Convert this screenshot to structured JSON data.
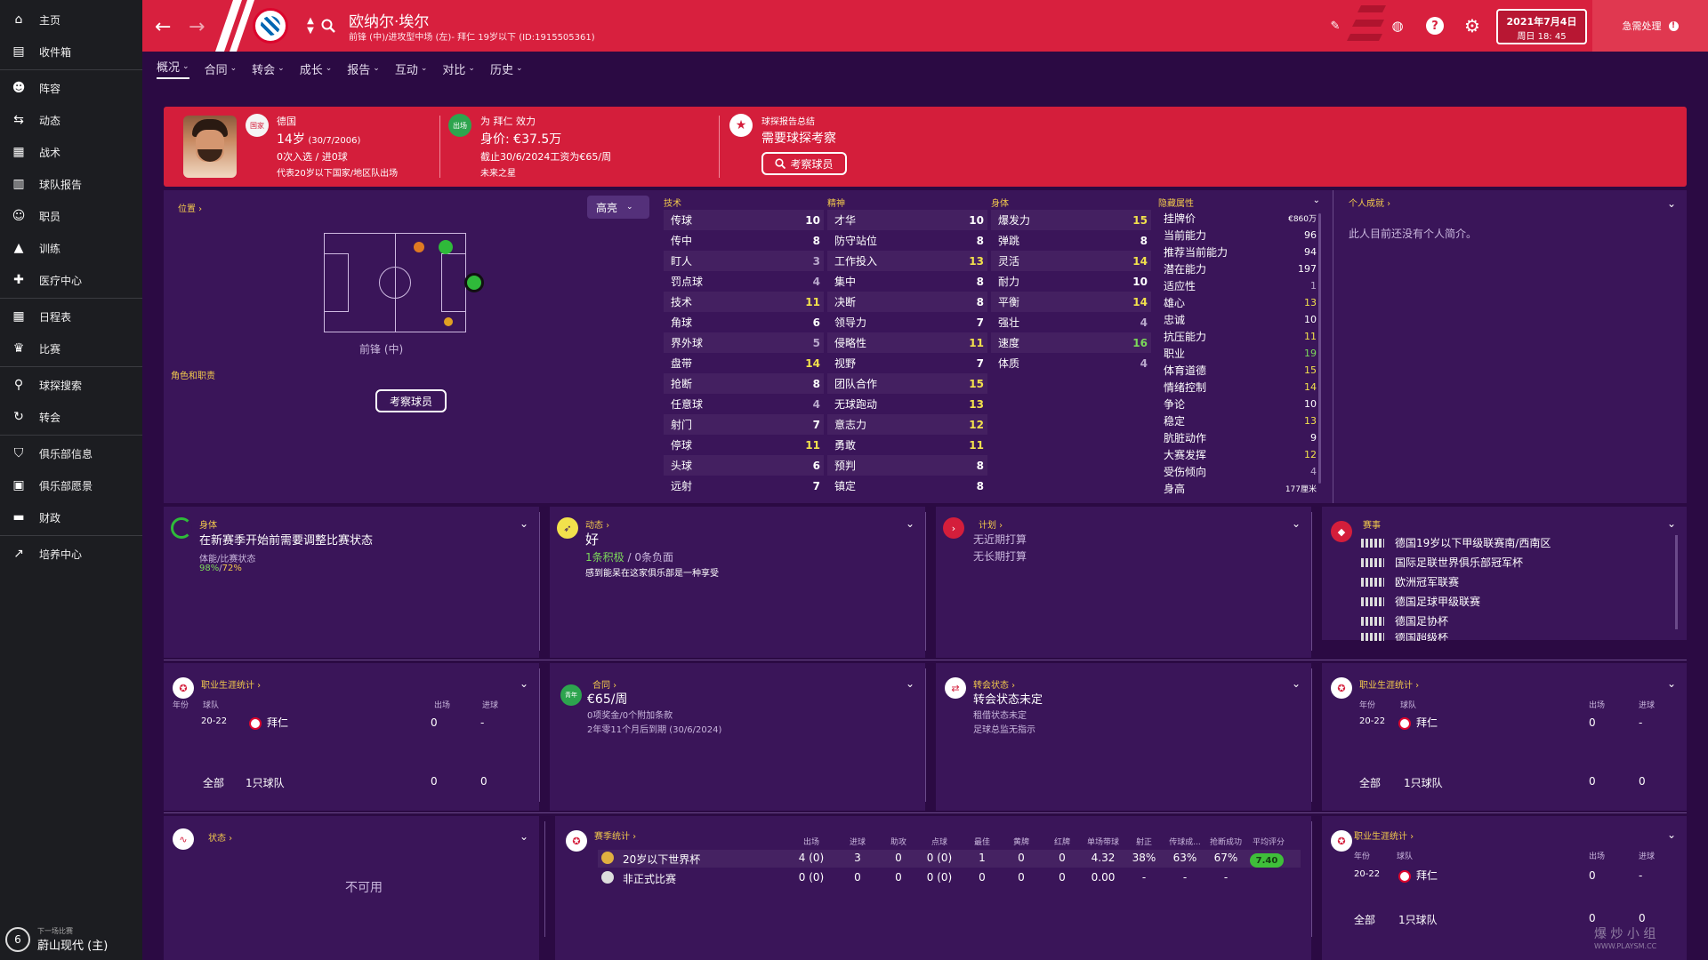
{
  "sidebar": {
    "items": [
      {
        "label": "主页",
        "icon": "home-icon"
      },
      {
        "label": "收件箱",
        "icon": "inbox-icon"
      },
      {
        "label": "阵容",
        "icon": "squad-icon"
      },
      {
        "label": "动态",
        "icon": "dynamics-icon"
      },
      {
        "label": "战术",
        "icon": "tactics-icon"
      },
      {
        "label": "球队报告",
        "icon": "report-icon"
      },
      {
        "label": "职员",
        "icon": "staff-icon"
      },
      {
        "label": "训练",
        "icon": "training-icon"
      },
      {
        "label": "医疗中心",
        "icon": "medical-icon"
      },
      {
        "label": "日程表",
        "icon": "schedule-icon"
      },
      {
        "label": "比赛",
        "icon": "trophy-icon"
      },
      {
        "label": "球探搜索",
        "icon": "search-icon"
      },
      {
        "label": "转会",
        "icon": "transfer-icon"
      },
      {
        "label": "俱乐部信息",
        "icon": "shield-icon"
      },
      {
        "label": "俱乐部愿景",
        "icon": "vision-icon"
      },
      {
        "label": "财政",
        "icon": "finance-icon"
      },
      {
        "label": "培养中心",
        "icon": "development-icon"
      }
    ],
    "next_match_label": "下一场比赛",
    "next_match": "蔚山现代 (主)",
    "next_match_num": "6"
  },
  "header": {
    "player_name": "欧纳尔·埃尔",
    "player_sub": "前锋 (中)/进攻型中场 (左)- 拜仁 19岁以下 (ID:1915505361)",
    "date": "2021年7月4日",
    "time": "周日 18: 45",
    "urgent": "急需处理",
    "urgent_badge": "!"
  },
  "tabs": [
    "概况",
    "合同",
    "转会",
    "成长",
    "报告",
    "互动",
    "对比",
    "历史"
  ],
  "banner": {
    "nation": "德国",
    "age": "14岁",
    "dob": "(30/7/2006)",
    "caps": "0次入选 / 进0球",
    "intl": "代表20岁以下国家/地区队出场",
    "nation_badge": "国家",
    "plays_for": "为 拜仁 效力",
    "value": "身价: €37.5万",
    "contract": "截止30/6/2024工资为€65/周",
    "future": "未来之星",
    "club_badge": "出场",
    "scout_title": "球探报告总结",
    "scout_text": "需要球探考察",
    "scout_btn": "考察球员"
  },
  "position": {
    "label": "位置",
    "highlight": "高亮",
    "pos_name": "前锋 (中)",
    "role_label": "角色和职责",
    "scout_btn": "考察球员"
  },
  "technical": {
    "title": "技术",
    "rows": [
      {
        "n": "传球",
        "v": "10"
      },
      {
        "n": "传中",
        "v": "8"
      },
      {
        "n": "盯人",
        "v": "3"
      },
      {
        "n": "罚点球",
        "v": "4"
      },
      {
        "n": "技术",
        "v": "11"
      },
      {
        "n": "角球",
        "v": "6"
      },
      {
        "n": "界外球",
        "v": "5"
      },
      {
        "n": "盘带",
        "v": "14"
      },
      {
        "n": "抢断",
        "v": "8"
      },
      {
        "n": "任意球",
        "v": "4"
      },
      {
        "n": "射门",
        "v": "7"
      },
      {
        "n": "停球",
        "v": "11"
      },
      {
        "n": "头球",
        "v": "6"
      },
      {
        "n": "远射",
        "v": "7"
      }
    ]
  },
  "mental": {
    "title": "精神",
    "rows": [
      {
        "n": "才华",
        "v": "10"
      },
      {
        "n": "防守站位",
        "v": "8"
      },
      {
        "n": "工作投入",
        "v": "13"
      },
      {
        "n": "集中",
        "v": "8"
      },
      {
        "n": "决断",
        "v": "8"
      },
      {
        "n": "领导力",
        "v": "7"
      },
      {
        "n": "侵略性",
        "v": "11"
      },
      {
        "n": "视野",
        "v": "7"
      },
      {
        "n": "团队合作",
        "v": "15"
      },
      {
        "n": "无球跑动",
        "v": "13"
      },
      {
        "n": "意志力",
        "v": "12"
      },
      {
        "n": "勇敢",
        "v": "11"
      },
      {
        "n": "预判",
        "v": "8"
      },
      {
        "n": "镇定",
        "v": "8"
      }
    ]
  },
  "physical": {
    "title": "身体",
    "rows": [
      {
        "n": "爆发力",
        "v": "15"
      },
      {
        "n": "弹跳",
        "v": "8"
      },
      {
        "n": "灵活",
        "v": "14"
      },
      {
        "n": "耐力",
        "v": "10"
      },
      {
        "n": "平衡",
        "v": "14"
      },
      {
        "n": "强壮",
        "v": "4"
      },
      {
        "n": "速度",
        "v": "16"
      },
      {
        "n": "体质",
        "v": "4"
      }
    ]
  },
  "hidden": {
    "title": "隐藏属性",
    "rows": [
      {
        "n": "挂牌价",
        "v": "€860万"
      },
      {
        "n": "当前能力",
        "v": "96"
      },
      {
        "n": "推荐当前能力",
        "v": "94"
      },
      {
        "n": "潜在能力",
        "v": "197"
      },
      {
        "n": "适应性",
        "v": "1"
      },
      {
        "n": "雄心",
        "v": "13"
      },
      {
        "n": "忠诚",
        "v": "10"
      },
      {
        "n": "抗压能力",
        "v": "11"
      },
      {
        "n": "职业",
        "v": "19"
      },
      {
        "n": "体育道德",
        "v": "15"
      },
      {
        "n": "情绪控制",
        "v": "14"
      },
      {
        "n": "争论",
        "v": "10"
      },
      {
        "n": "稳定",
        "v": "13"
      },
      {
        "n": "肮脏动作",
        "v": "9"
      },
      {
        "n": "大赛发挥",
        "v": "12"
      },
      {
        "n": "受伤倾向",
        "v": "4"
      },
      {
        "n": "身高",
        "v": "177厘米"
      }
    ]
  },
  "bio": {
    "title": "个人成就",
    "text": "此人目前还没有个人简介。"
  },
  "panels": {
    "fitness": {
      "title": "身体",
      "line": "在新赛季开始前需要调整比赛状态",
      "small": "体能/比赛状态",
      "v1": "98%",
      "sep": "/",
      "v2": "72%"
    },
    "dynamics": {
      "title": "动态",
      "line": "好",
      "pos": "1条积极",
      "neg": " / 0条负面",
      "note": "感到能呆在这家俱乐部是一种享受"
    },
    "plans": {
      "title": "计划",
      "l1": "无近期打算",
      "l2": "无长期打算"
    },
    "comps": {
      "title": "赛事",
      "items": [
        "德国19岁以下甲级联赛南/西南区",
        "国际足联世界俱乐部冠军杯",
        "欧洲冠军联赛",
        "德国足球甲级联赛",
        "德国足协杯",
        "德国超级杯"
      ]
    },
    "career": {
      "title": "职业生涯统计",
      "h_year": "年份",
      "h_team": "球队",
      "h_apps": "出场",
      "h_goals": "进球",
      "year": "20-22",
      "team": "拜仁",
      "apps": "0",
      "goals": "-",
      "total_label": "全部",
      "total_teams": "1只球队",
      "total_apps": "0",
      "total_goals": "0"
    },
    "contract": {
      "title": "合同",
      "badge": "青年",
      "wage": "€65/周",
      "l1": "0项奖金/0个附加条款",
      "l2": "2年零11个月后到期 (30/6/2024)"
    },
    "transfer": {
      "title": "转会状态",
      "line": "转会状态未定",
      "l1": "租借状态未定",
      "l2": "足球总监无指示"
    },
    "form": {
      "title": "状态",
      "unavailable": "不可用"
    },
    "season": {
      "title": "赛季统计",
      "headers": [
        "出场",
        "进球",
        "助攻",
        "点球",
        "最佳",
        "黄牌",
        "红牌",
        "单场带球",
        "射正",
        "传球成...",
        "抢断成功",
        "平均评分"
      ],
      "rows": [
        {
          "name": "20岁以下世界杯",
          "vals": [
            "4 (0)",
            "3",
            "0",
            "0 (0)",
            "1",
            "0",
            "0",
            "4.32",
            "38%",
            "63%",
            "67%"
          ],
          "rating": "7.40"
        },
        {
          "name": "非正式比赛",
          "vals": [
            "0 (0)",
            "0",
            "0",
            "0 (0)",
            "0",
            "0",
            "0",
            "0.00",
            "-",
            "-",
            "-"
          ],
          "rating": ""
        }
      ]
    }
  },
  "watermark": {
    "t1": "爆 炒 小 组",
    "t2": "WWW.PLAYSM.CC"
  }
}
